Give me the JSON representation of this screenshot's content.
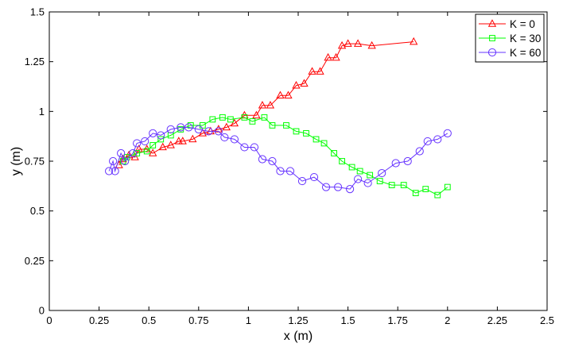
{
  "chart_data": {
    "type": "line",
    "xlabel": "x (m)",
    "ylabel": "y (m)",
    "xlim": [
      0,
      2.5
    ],
    "ylim": [
      0,
      1.5
    ],
    "xticks": [
      0,
      0.25,
      0.5,
      0.75,
      1,
      1.25,
      1.5,
      1.75,
      2,
      2.25,
      2.5
    ],
    "yticks": [
      0,
      0.25,
      0.5,
      0.75,
      1,
      1.25,
      1.5
    ],
    "xtick_labels": [
      "0",
      "0.25",
      "0.5",
      "0.75",
      "1",
      "1.25",
      "1.5",
      "1.75",
      "2",
      "2.25",
      "2.5"
    ],
    "ytick_labels": [
      "0",
      "0.25",
      "0.5",
      "0.75",
      "1",
      "1.25",
      "1.5"
    ],
    "grid": false,
    "legend_position": "top-right",
    "series": [
      {
        "name": "K = 0",
        "color": "#ff0000",
        "marker": "triangle",
        "x": [
          0.35,
          0.37,
          0.4,
          0.43,
          0.45,
          0.49,
          0.52,
          0.57,
          0.61,
          0.65,
          0.67,
          0.72,
          0.77,
          0.81,
          0.85,
          0.89,
          0.93,
          0.98,
          1.04,
          1.07,
          1.11,
          1.16,
          1.2,
          1.24,
          1.28,
          1.32,
          1.36,
          1.4,
          1.44,
          1.47,
          1.5,
          1.55,
          1.62,
          1.83
        ],
        "y": [
          0.73,
          0.76,
          0.78,
          0.77,
          0.81,
          0.81,
          0.79,
          0.82,
          0.83,
          0.85,
          0.85,
          0.86,
          0.89,
          0.9,
          0.91,
          0.92,
          0.94,
          0.98,
          0.98,
          1.03,
          1.03,
          1.08,
          1.08,
          1.13,
          1.14,
          1.2,
          1.2,
          1.27,
          1.27,
          1.33,
          1.34,
          1.34,
          1.33,
          1.35
        ]
      },
      {
        "name": "K = 30",
        "color": "#00ff00",
        "marker": "square",
        "x": [
          0.37,
          0.39,
          0.44,
          0.49,
          0.52,
          0.56,
          0.61,
          0.66,
          0.71,
          0.77,
          0.82,
          0.87,
          0.91,
          0.98,
          1.02,
          1.08,
          1.12,
          1.19,
          1.24,
          1.29,
          1.34,
          1.38,
          1.43,
          1.47,
          1.52,
          1.56,
          1.61,
          1.66,
          1.72,
          1.78,
          1.84,
          1.89,
          1.95,
          2.0
        ],
        "y": [
          0.75,
          0.77,
          0.79,
          0.8,
          0.83,
          0.86,
          0.88,
          0.91,
          0.93,
          0.93,
          0.96,
          0.97,
          0.96,
          0.97,
          0.95,
          0.97,
          0.93,
          0.93,
          0.9,
          0.89,
          0.86,
          0.84,
          0.79,
          0.75,
          0.72,
          0.7,
          0.68,
          0.65,
          0.63,
          0.63,
          0.59,
          0.61,
          0.58,
          0.62
        ]
      },
      {
        "name": "K = 60",
        "color": "#6633ff",
        "marker": "circle",
        "x": [
          0.3,
          0.32,
          0.33,
          0.36,
          0.38,
          0.42,
          0.44,
          0.48,
          0.52,
          0.56,
          0.61,
          0.66,
          0.7,
          0.75,
          0.8,
          0.85,
          0.88,
          0.93,
          0.98,
          1.03,
          1.07,
          1.12,
          1.16,
          1.21,
          1.27,
          1.33,
          1.39,
          1.45,
          1.51,
          1.55,
          1.6,
          1.67,
          1.74,
          1.8,
          1.86,
          1.9,
          1.95,
          2.0
        ],
        "y": [
          0.7,
          0.75,
          0.7,
          0.79,
          0.75,
          0.79,
          0.84,
          0.85,
          0.89,
          0.88,
          0.91,
          0.92,
          0.92,
          0.91,
          0.9,
          0.9,
          0.87,
          0.86,
          0.82,
          0.82,
          0.76,
          0.75,
          0.7,
          0.7,
          0.65,
          0.67,
          0.62,
          0.62,
          0.61,
          0.66,
          0.64,
          0.69,
          0.74,
          0.75,
          0.8,
          0.85,
          0.86,
          0.89
        ]
      }
    ]
  }
}
